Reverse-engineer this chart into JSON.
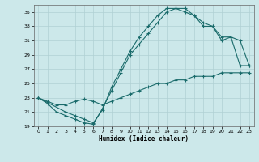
{
  "xlabel": "Humidex (Indice chaleur)",
  "ylabel": "",
  "bg_color": "#cce8ea",
  "grid_color": "#b0d0d4",
  "line_color": "#1a6b6b",
  "xlim": [
    -0.5,
    23.5
  ],
  "ylim": [
    19,
    36
  ],
  "xticks": [
    0,
    1,
    2,
    3,
    4,
    5,
    6,
    7,
    8,
    9,
    10,
    11,
    12,
    13,
    14,
    15,
    16,
    17,
    18,
    19,
    20,
    21,
    22,
    23
  ],
  "yticks": [
    19,
    21,
    23,
    25,
    27,
    29,
    31,
    33,
    35
  ],
  "line1_x": [
    0,
    1,
    2,
    3,
    4,
    5,
    6,
    7,
    8,
    9,
    10,
    11,
    12,
    13,
    14,
    15,
    16,
    17,
    18,
    19,
    20,
    21,
    22,
    23
  ],
  "line1_y": [
    23.0,
    22.2,
    21.0,
    20.5,
    20.0,
    19.5,
    19.3,
    21.5,
    24.0,
    26.5,
    29.0,
    30.5,
    32.0,
    33.5,
    35.0,
    35.5,
    35.5,
    34.5,
    33.0,
    33.0,
    31.0,
    31.5,
    27.5,
    27.5
  ],
  "line2_x": [
    0,
    3,
    4,
    5,
    6,
    7,
    8,
    9,
    10,
    11,
    12,
    13,
    14,
    15,
    16,
    17,
    18,
    19,
    20,
    21,
    22,
    23
  ],
  "line2_y": [
    23.0,
    21.0,
    20.5,
    20.0,
    19.5,
    21.3,
    24.5,
    27.0,
    29.5,
    31.5,
    33.0,
    34.5,
    35.5,
    35.5,
    35.0,
    34.5,
    33.5,
    33.0,
    31.5,
    31.5,
    31.0,
    27.5
  ],
  "line3_x": [
    0,
    1,
    2,
    3,
    4,
    5,
    6,
    7,
    8,
    9,
    10,
    11,
    12,
    13,
    14,
    15,
    16,
    17,
    18,
    19,
    20,
    21,
    22,
    23
  ],
  "line3_y": [
    23.0,
    22.5,
    22.0,
    22.0,
    22.5,
    22.8,
    22.5,
    22.0,
    22.5,
    23.0,
    23.5,
    24.0,
    24.5,
    25.0,
    25.0,
    25.5,
    25.5,
    26.0,
    26.0,
    26.0,
    26.5,
    26.5,
    26.5,
    26.5
  ]
}
